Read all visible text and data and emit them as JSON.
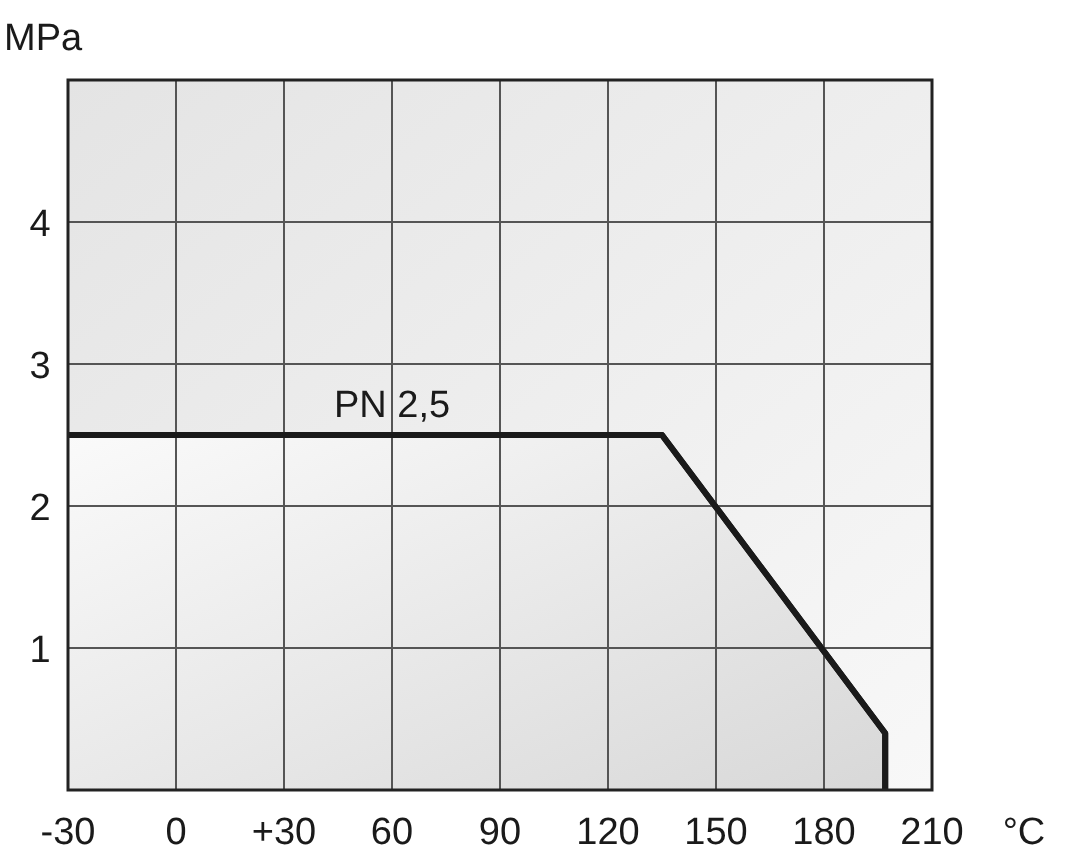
{
  "chart_data": {
    "type": "area",
    "xlabel": "°C",
    "ylabel": "MPa",
    "x": [
      -30,
      135,
      197,
      197
    ],
    "series": [
      {
        "color": "#1a1a1a",
        "values": [
          2.5,
          2.5,
          0.4,
          0
        ]
      }
    ],
    "xlim": [
      -30,
      210
    ],
    "ylim": [
      0,
      5
    ],
    "xticks": [
      -30,
      0,
      {
        "value": 30,
        "label": "+30"
      },
      60,
      90,
      120,
      150,
      180,
      210
    ],
    "yticks": [
      1,
      2,
      3,
      4
    ],
    "grid": true,
    "annotations": [
      {
        "text": "PN 2,5",
        "x": 60,
        "y": 2.5
      }
    ]
  }
}
